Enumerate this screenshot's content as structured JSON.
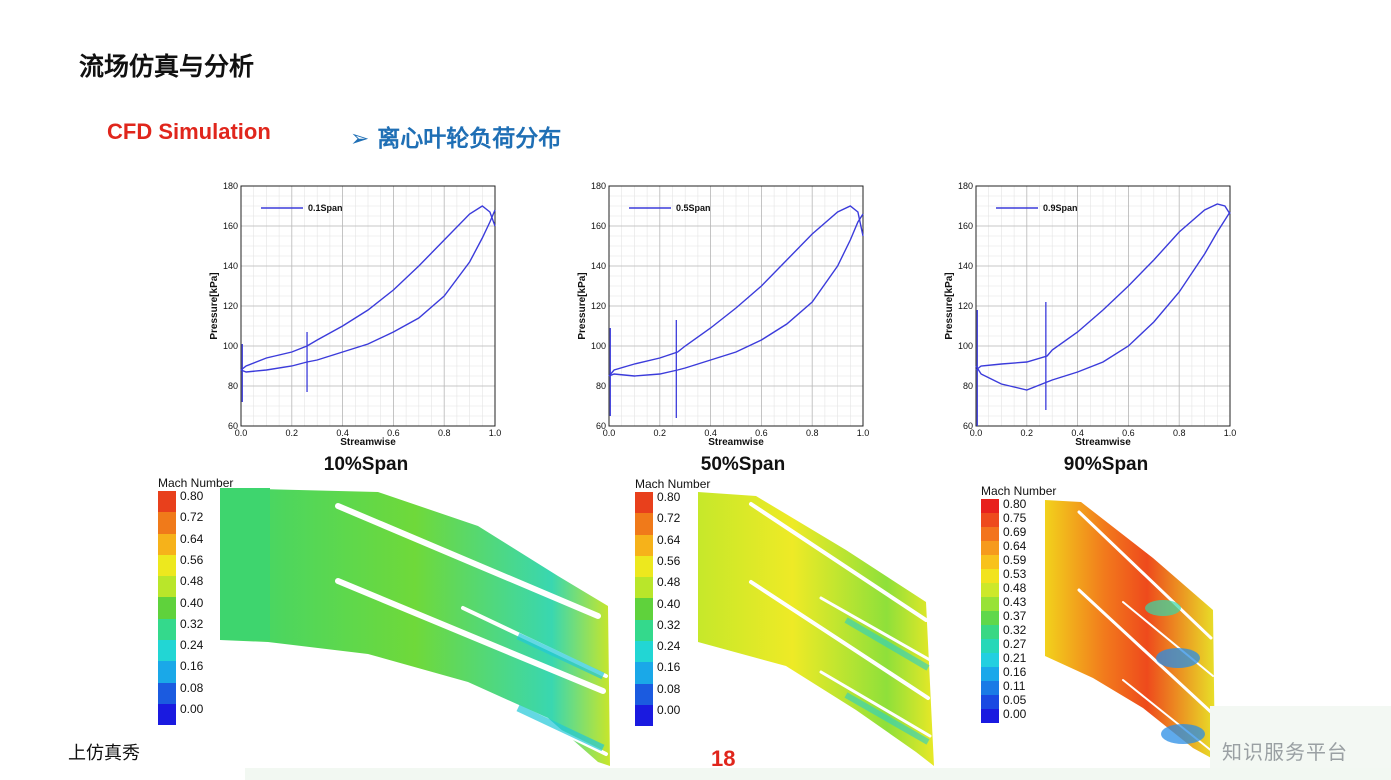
{
  "slide": {
    "title": "流场仿真与分析",
    "cfd_label": "CFD Simulation",
    "section_heading": "➢ 离心叶轮负荷分布",
    "footer_left": "上仿真秀",
    "page_number": "18",
    "watermark": "知识服务平台"
  },
  "charts_common": {
    "xlabel": "Streamwise",
    "ylabel": "Pressure[kPa]",
    "x_ticks": [
      "0.0",
      "0.2",
      "0.4",
      "0.6",
      "0.8",
      "1.0"
    ],
    "y_ticks": [
      "60",
      "80",
      "100",
      "120",
      "140",
      "160",
      "180"
    ],
    "line_color": "#3b3bdb"
  },
  "chart_data": [
    {
      "type": "line",
      "caption": "10%Span",
      "xlabel": "Streamwise",
      "ylabel": "Pressure[kPa]",
      "xlim": [
        0,
        1
      ],
      "ylim": [
        60,
        180
      ],
      "legend": "top-left",
      "grid": true,
      "series": [
        {
          "name": "0.1Span",
          "upper": {
            "x": [
              0.0,
              0.02,
              0.1,
              0.2,
              0.26,
              0.3,
              0.4,
              0.5,
              0.6,
              0.7,
              0.8,
              0.9,
              0.95,
              0.98,
              1.0
            ],
            "y": [
              88,
              90,
              94,
              97,
              100,
              103,
              110,
              118,
              128,
              140,
              153,
              166,
              170,
              167,
              160
            ]
          },
          "lower": {
            "x": [
              0.0,
              0.02,
              0.1,
              0.2,
              0.26,
              0.3,
              0.4,
              0.5,
              0.6,
              0.7,
              0.8,
              0.9,
              0.95,
              0.98,
              1.0
            ],
            "y": [
              88,
              87,
              88,
              90,
              92,
              93,
              97,
              101,
              107,
              114,
              125,
              142,
              154,
              162,
              168
            ]
          },
          "spikes": [
            {
              "x": 0.005,
              "min": 72,
              "max": 101
            },
            {
              "x": 0.26,
              "min": 77,
              "max": 107
            }
          ]
        }
      ]
    },
    {
      "type": "line",
      "caption": "50%Span",
      "xlabel": "Streamwise",
      "ylabel": "Pressure[kPa]",
      "xlim": [
        0,
        1
      ],
      "ylim": [
        60,
        180
      ],
      "legend": "top-left",
      "grid": true,
      "series": [
        {
          "name": "0.5Span",
          "upper": {
            "x": [
              0.0,
              0.02,
              0.1,
              0.2,
              0.27,
              0.3,
              0.4,
              0.5,
              0.6,
              0.7,
              0.8,
              0.9,
              0.95,
              0.98,
              1.0
            ],
            "y": [
              85,
              88,
              91,
              94,
              97,
              100,
              109,
              119,
              130,
              143,
              156,
              167,
              170,
              167,
              155
            ]
          },
          "lower": {
            "x": [
              0.0,
              0.02,
              0.1,
              0.2,
              0.27,
              0.3,
              0.4,
              0.5,
              0.6,
              0.7,
              0.8,
              0.9,
              0.95,
              0.98,
              1.0
            ],
            "y": [
              85,
              86,
              85,
              86,
              88,
              89,
              93,
              97,
              103,
              111,
              122,
              140,
              153,
              162,
              166
            ]
          },
          "spikes": [
            {
              "x": 0.005,
              "min": 65,
              "max": 109
            },
            {
              "x": 0.265,
              "min": 64,
              "max": 113
            }
          ]
        }
      ]
    },
    {
      "type": "line",
      "caption": "90%Span",
      "xlabel": "Streamwise",
      "ylabel": "Pressure[kPa]",
      "xlim": [
        0,
        1
      ],
      "ylim": [
        60,
        180
      ],
      "legend": "top-left",
      "grid": true,
      "series": [
        {
          "name": "0.9Span",
          "upper": {
            "x": [
              0.0,
              0.02,
              0.1,
              0.2,
              0.28,
              0.3,
              0.4,
              0.5,
              0.6,
              0.7,
              0.8,
              0.9,
              0.95,
              0.98,
              1.0
            ],
            "y": [
              88,
              90,
              91,
              92,
              95,
              98,
              107,
              118,
              130,
              143,
              157,
              168,
              171,
              170,
              166
            ]
          },
          "lower": {
            "x": [
              0.0,
              0.02,
              0.1,
              0.2,
              0.28,
              0.3,
              0.4,
              0.5,
              0.6,
              0.7,
              0.8,
              0.9,
              0.95,
              0.98,
              1.0
            ],
            "y": [
              90,
              86,
              81,
              78,
              82,
              83,
              87,
              92,
              100,
              112,
              127,
              146,
              157,
              163,
              167
            ]
          },
          "spikes": [
            {
              "x": 0.005,
              "min": 60,
              "max": 118
            },
            {
              "x": 0.275,
              "min": 68,
              "max": 122
            }
          ]
        }
      ]
    }
  ],
  "legends": [
    {
      "title": "Mach Number",
      "labels": [
        "0.80",
        "0.72",
        "0.64",
        "0.56",
        "0.48",
        "0.40",
        "0.32",
        "0.24",
        "0.16",
        "0.08",
        "0.00"
      ],
      "colors": [
        "#e8401c",
        "#f07a1a",
        "#f6b21a",
        "#ede81e",
        "#b9e62a",
        "#5fd23c",
        "#34d98c",
        "#22d6d4",
        "#1aa8e8",
        "#1b5be0",
        "#1a1ae0"
      ]
    },
    {
      "title": "Mach Number",
      "labels": [
        "0.80",
        "0.72",
        "0.64",
        "0.56",
        "0.48",
        "0.40",
        "0.32",
        "0.24",
        "0.16",
        "0.08",
        "0.00"
      ],
      "colors": [
        "#e8401c",
        "#f07a1a",
        "#f6b21a",
        "#ede81e",
        "#b9e62a",
        "#5fd23c",
        "#34d98c",
        "#22d6d4",
        "#1aa8e8",
        "#1b5be0",
        "#1a1ae0"
      ]
    },
    {
      "title": "Mach Number",
      "labels": [
        "0.80",
        "0.75",
        "0.69",
        "0.64",
        "0.59",
        "0.53",
        "0.48",
        "0.43",
        "0.37",
        "0.32",
        "0.27",
        "0.21",
        "0.16",
        "0.11",
        "0.05",
        "0.00"
      ],
      "colors": [
        "#e8201c",
        "#ee4a1c",
        "#f3741c",
        "#f69a1c",
        "#f8c21c",
        "#f2e31e",
        "#cde82a",
        "#98e236",
        "#5fd84a",
        "#38d884",
        "#26d8b8",
        "#22cfe0",
        "#1aa8ea",
        "#1a7ae6",
        "#1a48e2",
        "#1a1ae0"
      ]
    }
  ]
}
